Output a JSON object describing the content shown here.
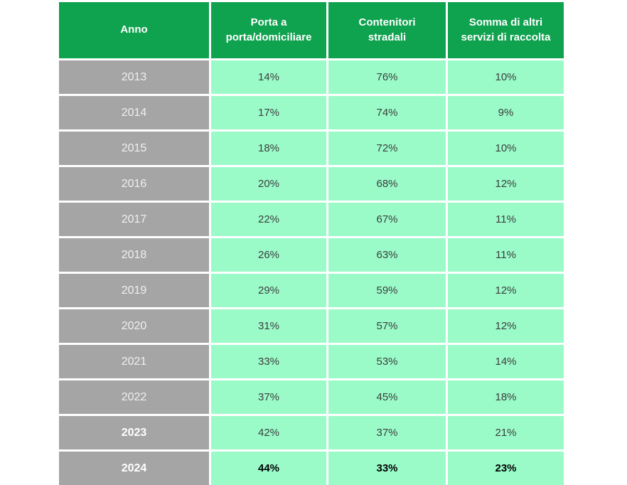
{
  "colors": {
    "page-bg": "#ffffff",
    "header-bg": "#0fa24f",
    "header-text": "#ffffff",
    "year-bg": "#a5a5a5",
    "year-text": "#f0f0f0",
    "cell-bg": "#9afbc9",
    "cell-text": "#3d3d3d",
    "emphasis-text": "#000000"
  },
  "table": {
    "columns": [
      {
        "label": "Anno",
        "lines": [
          "Anno"
        ]
      },
      {
        "label": "Porta a porta/domiciliare",
        "lines": [
          "Porta a",
          "porta/domiciliare"
        ]
      },
      {
        "label": "Contenitori stradali",
        "lines": [
          "Contenitori",
          "stradali"
        ]
      },
      {
        "label": "Somma di altri servizi di raccolta",
        "lines": [
          "Somma di altri",
          "servizi di raccolta"
        ]
      }
    ],
    "rows": [
      {
        "year": "2013",
        "values": [
          "14%",
          "76%",
          "10%"
        ],
        "year_bold": false,
        "values_bold": false
      },
      {
        "year": "2014",
        "values": [
          "17%",
          "74%",
          "9%"
        ],
        "year_bold": false,
        "values_bold": false
      },
      {
        "year": "2015",
        "values": [
          "18%",
          "72%",
          "10%"
        ],
        "year_bold": false,
        "values_bold": false
      },
      {
        "year": "2016",
        "values": [
          "20%",
          "68%",
          "12%"
        ],
        "year_bold": false,
        "values_bold": false
      },
      {
        "year": "2017",
        "values": [
          "22%",
          "67%",
          "11%"
        ],
        "year_bold": false,
        "values_bold": false
      },
      {
        "year": "2018",
        "values": [
          "26%",
          "63%",
          "11%"
        ],
        "year_bold": false,
        "values_bold": false
      },
      {
        "year": "2019",
        "values": [
          "29%",
          "59%",
          "12%"
        ],
        "year_bold": false,
        "values_bold": false
      },
      {
        "year": "2020",
        "values": [
          "31%",
          "57%",
          "12%"
        ],
        "year_bold": false,
        "values_bold": false
      },
      {
        "year": "2021",
        "values": [
          "33%",
          "53%",
          "14%"
        ],
        "year_bold": false,
        "values_bold": false
      },
      {
        "year": "2022",
        "values": [
          "37%",
          "45%",
          "18%"
        ],
        "year_bold": false,
        "values_bold": false
      },
      {
        "year": "2023",
        "values": [
          "42%",
          "37%",
          "21%"
        ],
        "year_bold": true,
        "values_bold": false
      },
      {
        "year": "2024",
        "values": [
          "44%",
          "33%",
          "23%"
        ],
        "year_bold": true,
        "values_bold": true
      }
    ]
  },
  "chart_data": {
    "type": "table",
    "categories": [
      "2013",
      "2014",
      "2015",
      "2016",
      "2017",
      "2018",
      "2019",
      "2020",
      "2021",
      "2022",
      "2023",
      "2024"
    ],
    "series": [
      {
        "name": "Porta a porta/domiciliare",
        "values": [
          14,
          17,
          18,
          20,
          22,
          26,
          29,
          31,
          33,
          37,
          42,
          44
        ]
      },
      {
        "name": "Contenitori stradali",
        "values": [
          76,
          74,
          72,
          68,
          67,
          63,
          59,
          57,
          53,
          45,
          37,
          33
        ]
      },
      {
        "name": "Somma di altri servizi di raccolta",
        "values": [
          10,
          9,
          10,
          12,
          11,
          11,
          12,
          12,
          14,
          18,
          21,
          23
        ]
      }
    ],
    "title": "",
    "xlabel": "Anno",
    "ylabel": "",
    "unit": "%"
  }
}
